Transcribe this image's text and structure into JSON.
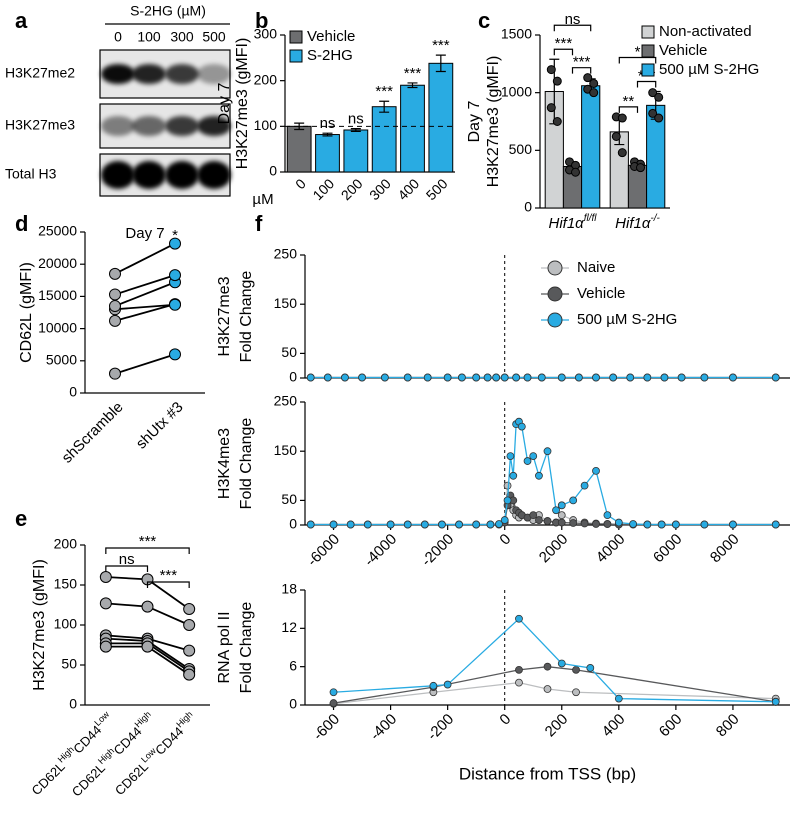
{
  "blot": {
    "label": "a",
    "header": "S-2HG (µM)",
    "lanes": [
      "0",
      "100",
      "300",
      "500"
    ],
    "rows": [
      "H3K27me2",
      "H3K27me3",
      "Total H3"
    ]
  },
  "chart_data": [
    {
      "label": "b",
      "type": "bar",
      "ylabel": [
        "Day 7",
        "H3K27me3 (gMFI)"
      ],
      "xlabel": "µM",
      "categories": [
        "0",
        "100",
        "200",
        "300",
        "400",
        "500"
      ],
      "series": [
        {
          "name": "Vehicle",
          "color": "#6d6e70",
          "values": [
            100,
            null,
            null,
            null,
            null,
            null
          ],
          "errors": [
            7,
            null,
            null,
            null,
            null,
            null
          ]
        },
        {
          "name": "S-2HG",
          "color": "#29abe2",
          "values": [
            null,
            82,
            92,
            143,
            190,
            238
          ],
          "errors": [
            null,
            3,
            3,
            12,
            5,
            18
          ]
        }
      ],
      "significance": [
        {
          "at": "100",
          "text": "ns"
        },
        {
          "at": "200",
          "text": "ns"
        },
        {
          "at": "300",
          "text": "***"
        },
        {
          "at": "400",
          "text": "***"
        },
        {
          "at": "500",
          "text": "***"
        }
      ],
      "reference_line": 100,
      "ylim": [
        0,
        300
      ],
      "yticks": [
        0,
        100,
        200,
        300
      ]
    },
    {
      "label": "c",
      "type": "grouped_bar",
      "ylabel": [
        "Day 7",
        "H3K27me3 (gMFI)"
      ],
      "categories": [
        [
          "Hif1α",
          "fl/fl"
        ],
        [
          "Hif1α",
          "-/-"
        ]
      ],
      "series": [
        {
          "name": "Non-activated",
          "color": "#d1d3d4",
          "values": [
            1010,
            660
          ],
          "errors": [
            280,
            110
          ],
          "points": [
            [
              1200,
              1100,
              870,
              750
            ],
            [
              790,
              780,
              620,
              480
            ]
          ]
        },
        {
          "name": "Vehicle",
          "color": "#6d6e70",
          "values": [
            360,
            370
          ],
          "errors": [
            40,
            20
          ],
          "points": [
            [
              400,
              370,
              330,
              310
            ],
            [
              400,
              380,
              360,
              350
            ]
          ]
        },
        {
          "name": "500 µM S-2HG",
          "color": "#29abe2",
          "values": [
            1060,
            890
          ],
          "errors": [
            60,
            120
          ],
          "points": [
            [
              1130,
              1080,
              1030,
              1000
            ],
            [
              1000,
              960,
              820,
              780
            ]
          ]
        }
      ],
      "brackets": [
        {
          "in": "fl/fl",
          "between": [
            "Non-activated",
            "Vehicle"
          ],
          "text": "***"
        },
        {
          "in": "fl/fl",
          "between": [
            "Vehicle",
            "500 µM S-2HG"
          ],
          "text": "***"
        },
        {
          "in": "fl/fl",
          "between": [
            "Non-activated",
            "500 µM S-2HG"
          ],
          "text": "ns"
        },
        {
          "in": "-/-",
          "between": [
            "Non-activated",
            "Vehicle"
          ],
          "text": "**"
        },
        {
          "in": "-/-",
          "between": [
            "Vehicle",
            "500 µM S-2HG"
          ],
          "text": "***"
        },
        {
          "in": "-/-",
          "between": [
            "Non-activated",
            "500 µM S-2HG"
          ],
          "text": "*"
        }
      ],
      "legend": "right top",
      "ylim": [
        0,
        1500
      ],
      "yticks": [
        0,
        500,
        1000,
        1500
      ]
    },
    {
      "label": "d",
      "type": "paired",
      "title": "Day 7",
      "annotation": "*",
      "ylabel": "CD62L (gMFI)",
      "categories": [
        "shScramble",
        "shUtx #3"
      ],
      "colors": [
        "#a7a9ac",
        "#29abe2"
      ],
      "values": [
        [
          3000,
          6000
        ],
        [
          11200,
          13800
        ],
        [
          13000,
          13700
        ],
        [
          13500,
          17200
        ],
        [
          15300,
          18300
        ],
        [
          18500,
          23200
        ]
      ],
      "ylim": [
        0,
        25000
      ],
      "yticks": [
        0,
        5000,
        10000,
        15000,
        20000,
        25000
      ]
    },
    {
      "label": "e",
      "type": "paired",
      "ylabel": "H3K27me3 (gMFI)",
      "categories": [
        [
          "CD62L",
          "High",
          "CD44",
          "Low"
        ],
        [
          "CD62L",
          "High",
          "CD44",
          "High"
        ],
        [
          "CD62L",
          "Low",
          "CD44",
          "High"
        ]
      ],
      "colors": [
        "#a7a9ac",
        "#a7a9ac",
        "#a7a9ac"
      ],
      "values": [
        [
          160,
          157,
          120
        ],
        [
          127,
          123,
          100
        ],
        [
          87,
          83,
          68
        ],
        [
          83,
          80,
          45
        ],
        [
          77,
          77,
          42
        ],
        [
          73,
          73,
          38
        ]
      ],
      "brackets": [
        {
          "between": [
            0,
            1
          ],
          "text": "ns"
        },
        {
          "between": [
            1,
            2
          ],
          "text": "***"
        },
        {
          "between": [
            0,
            2
          ],
          "text": "***"
        }
      ],
      "ylim": [
        0,
        200
      ],
      "yticks": [
        0,
        50,
        100,
        150,
        200
      ]
    },
    {
      "label": "f",
      "type": "line",
      "ylabel": [
        "H3K27me3",
        "Fold Change"
      ],
      "reference_x": 0,
      "legend": "right top",
      "series": [
        {
          "name": "Naive",
          "color": "#bcbec0",
          "x": [
            -6800,
            -6200,
            -5600,
            -5000,
            -4200,
            -3400,
            -2700,
            -2000,
            -1500,
            -1000,
            -600,
            -300,
            0,
            400,
            800,
            1300,
            2000,
            2600,
            3200,
            3800,
            4400,
            5000,
            5600,
            6200,
            7000,
            8000,
            9500
          ],
          "values": [
            1,
            1,
            1,
            1,
            1,
            1,
            1,
            1,
            1,
            1,
            1,
            1,
            1,
            1,
            1,
            1,
            1,
            1,
            1,
            1,
            1,
            1,
            1,
            1,
            1,
            1,
            1
          ]
        },
        {
          "name": "Vehicle",
          "color": "#58595b",
          "x": [
            -6800,
            -6200,
            -5600,
            -5000,
            -4200,
            -3400,
            -2700,
            -2000,
            -1500,
            -1000,
            -600,
            -300,
            0,
            400,
            800,
            1300,
            2000,
            2600,
            3200,
            3800,
            4400,
            5000,
            5600,
            6200,
            7000,
            8000,
            9500
          ],
          "values": [
            1,
            1,
            1,
            1,
            1,
            1,
            1,
            1,
            1,
            1,
            1,
            1,
            1,
            1,
            1,
            1,
            1,
            1,
            1,
            1,
            1,
            1,
            1,
            1,
            1,
            1,
            1
          ]
        },
        {
          "name": "500 µM S-2HG",
          "color": "#29abe2",
          "x": [
            -6800,
            -6200,
            -5600,
            -5000,
            -4200,
            -3400,
            -2700,
            -2000,
            -1500,
            -1000,
            -600,
            -300,
            0,
            400,
            800,
            1300,
            2000,
            2600,
            3200,
            3800,
            4400,
            5000,
            5600,
            6200,
            7000,
            8000,
            9500
          ],
          "values": [
            1,
            1,
            1,
            1,
            1,
            1,
            1,
            1,
            1,
            1,
            1,
            1,
            1,
            1,
            1,
            1,
            1,
            1,
            1,
            1,
            1,
            1,
            1,
            1,
            1,
            1,
            1
          ]
        }
      ],
      "xlim": [
        -7000,
        10000
      ],
      "ylim": [
        0,
        250
      ],
      "yticks": [
        0,
        50,
        150,
        250
      ]
    },
    {
      "type": "line",
      "ylabel": [
        "H3K4me3",
        "Fold Change"
      ],
      "reference_x": 0,
      "series": [
        {
          "color": "#bcbec0",
          "x": [
            -6800,
            -6000,
            -5400,
            -4800,
            -4000,
            -3400,
            -2800,
            -2200,
            -1600,
            -1000,
            -500,
            -200,
            0,
            100,
            200,
            300,
            400,
            500,
            600,
            800,
            1000,
            1200,
            1500,
            1800,
            2000,
            2400,
            2800,
            3200,
            3600,
            4000,
            4500,
            5000,
            5500,
            6000,
            7000,
            8000,
            9500
          ],
          "values": [
            1,
            1,
            1,
            1,
            1,
            1,
            1,
            1,
            1,
            1,
            1,
            1,
            8,
            80,
            40,
            30,
            20,
            15,
            20,
            15,
            10,
            20,
            8,
            5,
            20,
            10,
            5,
            3,
            2,
            1,
            1,
            1,
            1,
            1,
            1,
            1,
            1
          ]
        },
        {
          "color": "#58595b",
          "x": [
            -6800,
            -6000,
            -5400,
            -4800,
            -4000,
            -3400,
            -2800,
            -2200,
            -1600,
            -1000,
            -500,
            -200,
            0,
            100,
            200,
            300,
            400,
            500,
            600,
            800,
            1000,
            1200,
            1500,
            1800,
            2000,
            2400,
            2800,
            3200,
            3600,
            4000,
            4500,
            5000,
            5500,
            6000,
            7000,
            8000,
            9500
          ],
          "values": [
            1,
            1,
            1,
            1,
            1,
            1,
            1,
            1,
            1,
            1,
            1,
            1,
            5,
            40,
            60,
            50,
            30,
            25,
            20,
            15,
            20,
            10,
            8,
            5,
            5,
            4,
            3,
            2,
            2,
            1,
            1,
            1,
            1,
            1,
            1,
            1,
            1
          ]
        },
        {
          "color": "#29abe2",
          "x": [
            -6800,
            -6000,
            -5400,
            -4800,
            -4000,
            -3400,
            -2800,
            -2200,
            -1600,
            -1000,
            -500,
            -200,
            0,
            100,
            200,
            300,
            400,
            500,
            600,
            800,
            1000,
            1200,
            1500,
            1800,
            2000,
            2400,
            2800,
            3200,
            3600,
            4000,
            4500,
            5000,
            5500,
            6000,
            7000,
            8000,
            9500
          ],
          "values": [
            1,
            1,
            1,
            1,
            1,
            1,
            1,
            1,
            1,
            1,
            1,
            2,
            10,
            50,
            140,
            100,
            205,
            210,
            200,
            130,
            140,
            100,
            150,
            30,
            40,
            50,
            80,
            110,
            20,
            5,
            2,
            1,
            1,
            1,
            1,
            1,
            1
          ]
        }
      ],
      "xlim": [
        -7000,
        10000
      ],
      "xticks": [
        -6000,
        -4000,
        -2000,
        0,
        2000,
        4000,
        6000,
        8000
      ],
      "ylim": [
        0,
        250
      ],
      "yticks": [
        0,
        50,
        150,
        250
      ]
    },
    {
      "type": "line",
      "ylabel": [
        "RNA pol II",
        "Fold Change"
      ],
      "xlabel": "Distance from TSS (bp)",
      "reference_x": 0,
      "series": [
        {
          "color": "#bcbec0",
          "x": [
            -600,
            -250,
            50,
            150,
            250,
            950
          ],
          "values": [
            0.2,
            2,
            3.5,
            2.5,
            2,
            1
          ]
        },
        {
          "color": "#58595b",
          "x": [
            -600,
            -250,
            50,
            150,
            250,
            950
          ],
          "values": [
            0.3,
            2.8,
            5.5,
            6,
            5.5,
            0.5
          ]
        },
        {
          "color": "#29abe2",
          "x": [
            -600,
            -250,
            -200,
            50,
            200,
            300,
            400,
            950
          ],
          "values": [
            2,
            3,
            3.2,
            13.5,
            6.5,
            5.8,
            1,
            0.5
          ]
        }
      ],
      "xlim": [
        -700,
        1000
      ],
      "xticks": [
        -600,
        -400,
        -200,
        0,
        200,
        400,
        600,
        800
      ],
      "ylim": [
        0,
        18
      ],
      "yticks": [
        0,
        6,
        12,
        18
      ]
    }
  ]
}
